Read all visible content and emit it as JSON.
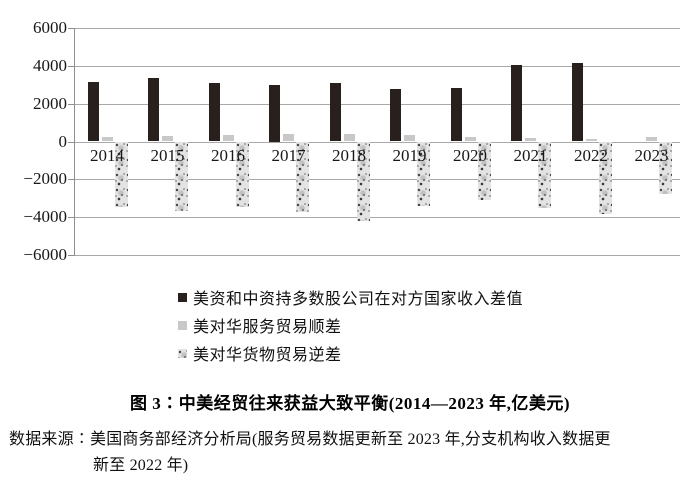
{
  "figure": {
    "caption": "图 3∶中美经贸往来获益大致平衡(2014—2023 年,亿美元)",
    "source_line1": "数据来源∶美国商务部经济分析局(服务贸易数据更新至 2023 年,分支机构收入数据更",
    "source_line2": "新至 2022 年)"
  },
  "legend": {
    "items": [
      {
        "label": "美资和中资持多数股公司在对方国家收入差值",
        "swatch": "black"
      },
      {
        "label": "美对华服务贸易顺差",
        "swatch": "gray"
      },
      {
        "label": "美对华货物贸易逆差",
        "swatch": "pattern"
      }
    ]
  },
  "chart_data": {
    "type": "bar",
    "title": "图 3∶中美经贸往来获益大致平衡(2014—2023 年,亿美元)",
    "categories": [
      "2014",
      "2015",
      "2016",
      "2017",
      "2018",
      "2019",
      "2020",
      "2021",
      "2022",
      "2023"
    ],
    "series": [
      {
        "name": "美资和中资持多数股公司在对方国家收入差值",
        "style": "black",
        "values": [
          3150,
          3350,
          3100,
          3000,
          3080,
          2800,
          2850,
          4050,
          4150,
          null
        ]
      },
      {
        "name": "美对华服务贸易顺差",
        "style": "gray",
        "values": [
          260,
          300,
          370,
          400,
          390,
          370,
          240,
          160,
          130,
          260
        ]
      },
      {
        "name": "美对华货物贸易逆差",
        "style": "pattern",
        "values": [
          -3450,
          -3670,
          -3470,
          -3750,
          -4200,
          -3430,
          -3100,
          -3540,
          -3820,
          -2790
        ]
      }
    ],
    "ylim": [
      -6000,
      6000
    ],
    "y_ticks": [
      6000,
      4000,
      2000,
      0,
      -2000,
      -4000,
      -6000
    ],
    "y_tick_labels": [
      "6000",
      "4000",
      "2000",
      "0",
      "−2000",
      "−4000",
      "−6000"
    ],
    "grid": true,
    "legend_position": "bottom-left",
    "unit": "亿美元",
    "colors": {
      "black_bar": "#27201d",
      "gray_bar": "#c8c8c8",
      "pattern_base": "#e3e3e3",
      "gridline": "#a9a9a9",
      "axis": "#8f8f8f"
    }
  }
}
